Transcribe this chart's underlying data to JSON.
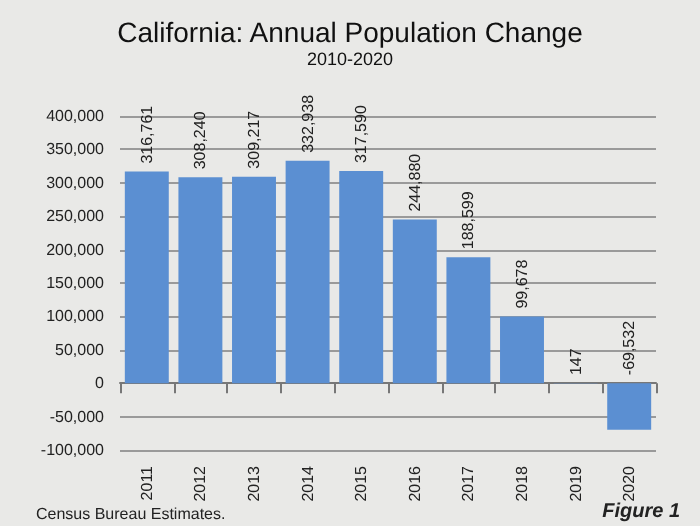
{
  "chart_data": {
    "type": "bar",
    "title": "California: Annual Population Change",
    "subtitle": "2010-2020",
    "categories": [
      "2011",
      "2012",
      "2013",
      "2014",
      "2015",
      "2016",
      "2017",
      "2018",
      "2019",
      "2020"
    ],
    "values": [
      316761,
      308240,
      309217,
      332938,
      317590,
      244880,
      188599,
      99678,
      147,
      -69532
    ],
    "value_labels": [
      "316,761",
      "308,240",
      "309,217",
      "332,938",
      "317,590",
      "244,880",
      "188,599",
      "99,678",
      "147",
      "-69,532"
    ],
    "color": "#5b8fd2",
    "ylim": [
      -100000,
      400000
    ],
    "yticks": [
      {
        "value": -100000,
        "label": "-100,000"
      },
      {
        "value": -50000,
        "label": "-50,000"
      },
      {
        "value": 0,
        "label": "0"
      },
      {
        "value": 50000,
        "label": "50,000"
      },
      {
        "value": 100000,
        "label": "100,000"
      },
      {
        "value": 150000,
        "label": "150,000"
      },
      {
        "value": 200000,
        "label": "200,000"
      },
      {
        "value": 250000,
        "label": "250,000"
      },
      {
        "value": 300000,
        "label": "300,000"
      },
      {
        "value": 350000,
        "label": "350,000"
      },
      {
        "value": 400000,
        "label": "400,000"
      }
    ],
    "grid": "y",
    "annotations": [
      "Census Bureau Estimates.",
      "Figure 1"
    ]
  }
}
